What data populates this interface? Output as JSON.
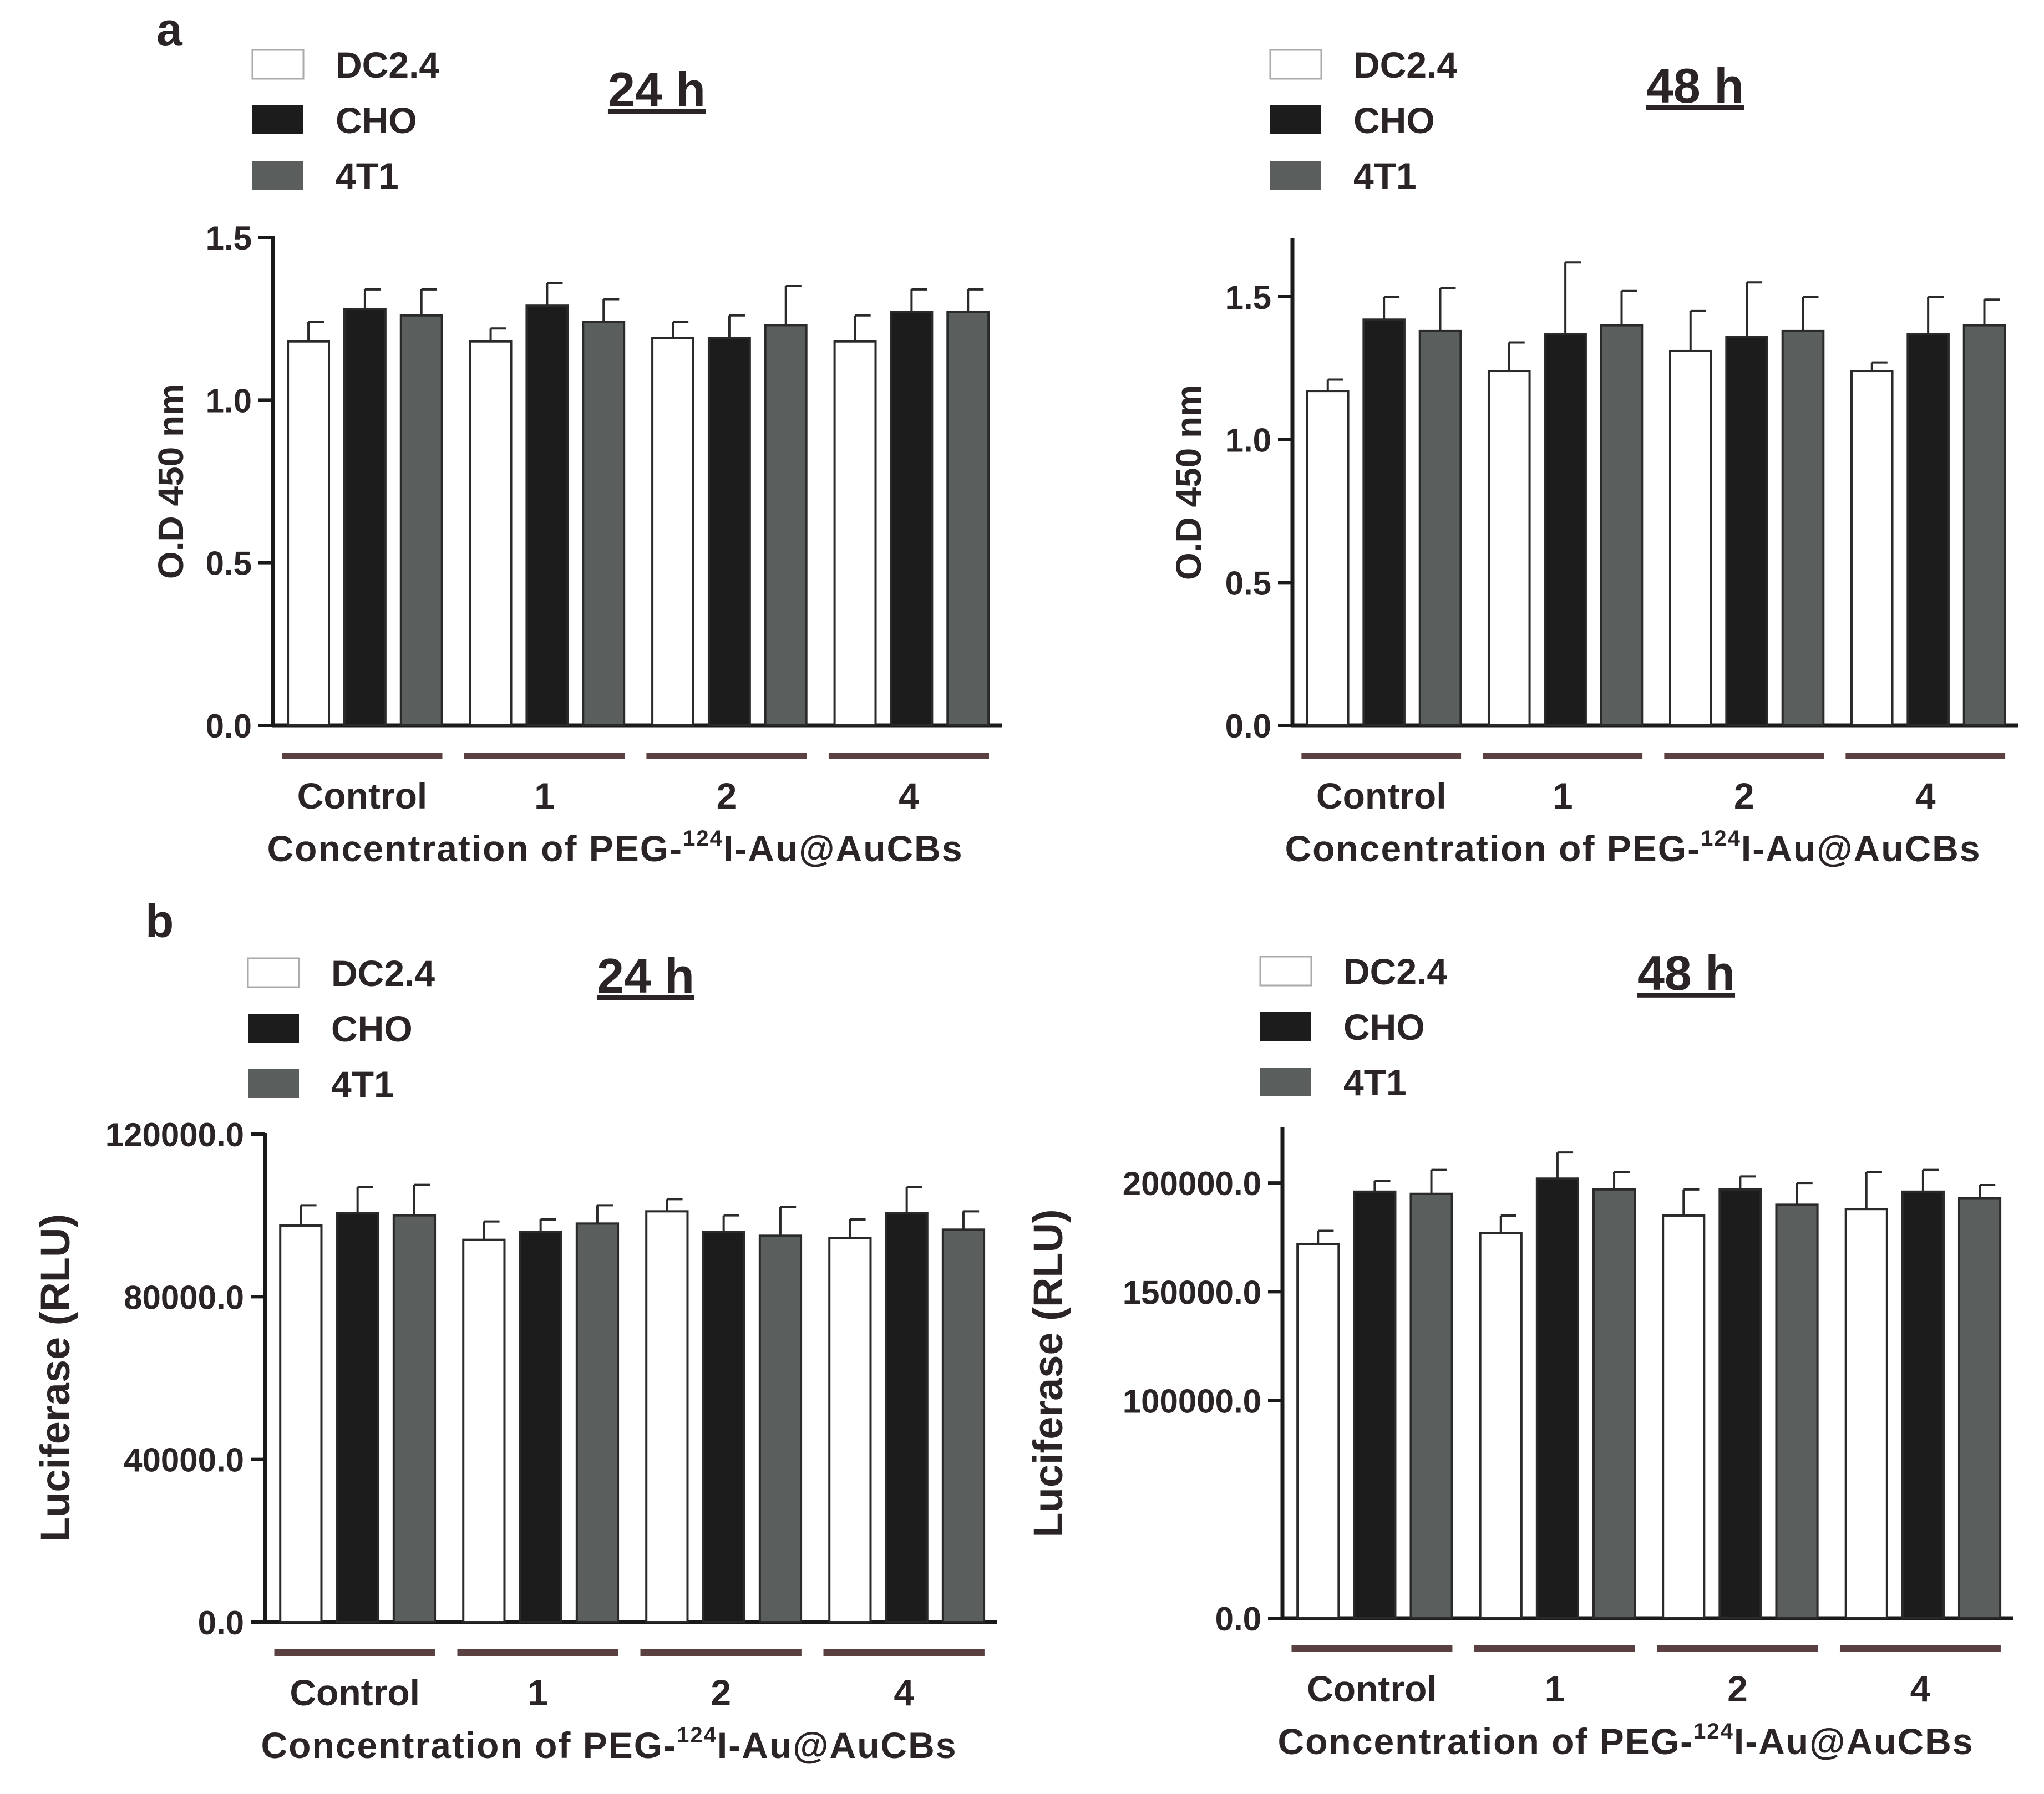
{
  "panel_labels": [
    "a",
    "b"
  ],
  "colors": {
    "DC2.4": "#ffffff",
    "CHO": "#1c1c1c",
    "4T1": "#5a5e5c",
    "axis": "#1a1a1a",
    "group_line": "#5a4040",
    "text": "#2a2426"
  },
  "chart_data": [
    {
      "type": "bar",
      "panel": "a",
      "title": "24 h",
      "ylabel": "O.D 450 nm",
      "xlabel": "Concentration of PEG-",
      "xlabel_sup": "124",
      "xlabel_rest": "I-Au@AuCBs",
      "categories": [
        "Control",
        "1",
        "2",
        "4"
      ],
      "ylim": [
        0,
        1.5
      ],
      "yticks": [
        "0.0",
        "0.5",
        "1.0",
        "1.5"
      ],
      "ytick_values": [
        0,
        0.5,
        1.0,
        1.5
      ],
      "legend": [
        "DC2.4",
        "CHO",
        "4T1"
      ],
      "legend_position": "top-left",
      "grid": false,
      "series": [
        {
          "name": "DC2.4",
          "values": [
            1.18,
            1.18,
            1.19,
            1.18
          ],
          "errors": [
            0.06,
            0.04,
            0.05,
            0.08
          ]
        },
        {
          "name": "CHO",
          "values": [
            1.28,
            1.29,
            1.19,
            1.27
          ],
          "errors": [
            0.06,
            0.07,
            0.07,
            0.07
          ]
        },
        {
          "name": "4T1",
          "values": [
            1.26,
            1.24,
            1.23,
            1.27
          ],
          "errors": [
            0.08,
            0.07,
            0.12,
            0.07
          ]
        }
      ]
    },
    {
      "type": "bar",
      "panel": "a",
      "title": "48 h",
      "ylabel": "O.D 450 nm",
      "xlabel": "Concentration of PEG-",
      "xlabel_sup": "124",
      "xlabel_rest": "I-Au@AuCBs",
      "categories": [
        "Control",
        "1",
        "2",
        "4"
      ],
      "ylim": [
        0,
        1.7
      ],
      "yticks": [
        "0.0",
        "0.5",
        "1.0",
        "1.5"
      ],
      "ytick_values": [
        0,
        0.5,
        1.0,
        1.5
      ],
      "legend": [
        "DC2.4",
        "CHO",
        "4T1"
      ],
      "legend_position": "top-left",
      "grid": false,
      "series": [
        {
          "name": "DC2.4",
          "values": [
            1.17,
            1.24,
            1.31,
            1.24
          ],
          "errors": [
            0.04,
            0.1,
            0.14,
            0.03
          ]
        },
        {
          "name": "CHO",
          "values": [
            1.42,
            1.37,
            1.36,
            1.37
          ],
          "errors": [
            0.08,
            0.25,
            0.19,
            0.13
          ]
        },
        {
          "name": "4T1",
          "values": [
            1.38,
            1.4,
            1.38,
            1.4
          ],
          "errors": [
            0.15,
            0.12,
            0.12,
            0.09
          ]
        }
      ]
    },
    {
      "type": "bar",
      "panel": "b",
      "title": "24 h",
      "ylabel": "Luciferase (RLU)",
      "xlabel": "Concentration of PEG-",
      "xlabel_sup": "124",
      "xlabel_rest": "I-Au@AuCBs",
      "categories": [
        "Control",
        "1",
        "2",
        "4"
      ],
      "ylim": [
        0,
        120000
      ],
      "yticks": [
        "0.0",
        "40000.0",
        "80000.0",
        "120000.0"
      ],
      "ytick_values": [
        0,
        40000,
        80000,
        120000
      ],
      "legend": [
        "DC2.4",
        "CHO",
        "4T1"
      ],
      "legend_position": "top-left",
      "grid": false,
      "series": [
        {
          "name": "DC2.4",
          "values": [
            97500,
            94000,
            101000,
            94500
          ],
          "errors": [
            5000,
            4500,
            3000,
            4500
          ]
        },
        {
          "name": "CHO",
          "values": [
            100500,
            96000,
            96000,
            100500
          ],
          "errors": [
            6500,
            3000,
            4000,
            6500
          ]
        },
        {
          "name": "4T1",
          "values": [
            100000,
            98000,
            95000,
            96500
          ],
          "errors": [
            7500,
            4500,
            7000,
            4500
          ]
        }
      ]
    },
    {
      "type": "bar",
      "panel": "b",
      "title": "48 h",
      "ylabel": "Luciferase (RLU)",
      "xlabel": "Concentration of PEG-",
      "xlabel_sup": "124",
      "xlabel_rest": "I-Au@AuCBs",
      "categories": [
        "Control",
        "1",
        "2",
        "4"
      ],
      "ylim": [
        0,
        225000
      ],
      "yticks": [
        "0.0",
        "100000.0",
        "150000.0",
        "200000.0"
      ],
      "ytick_values": [
        0,
        100000,
        150000,
        200000
      ],
      "legend": [
        "DC2.4",
        "CHO",
        "4T1"
      ],
      "legend_position": "top-left",
      "grid": false,
      "series": [
        {
          "name": "DC2.4",
          "values": [
            172000,
            177000,
            185000,
            188000
          ],
          "errors": [
            6000,
            8000,
            12000,
            17000
          ]
        },
        {
          "name": "CHO",
          "values": [
            196000,
            202000,
            197000,
            196000
          ],
          "errors": [
            5000,
            12000,
            6000,
            10000
          ]
        },
        {
          "name": "4T1",
          "values": [
            195000,
            197000,
            190000,
            193000
          ],
          "errors": [
            11000,
            8000,
            10000,
            6000
          ]
        }
      ]
    }
  ]
}
